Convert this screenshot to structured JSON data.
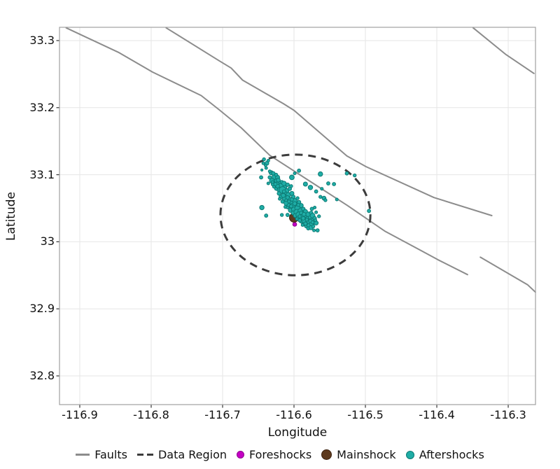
{
  "chart_data": {
    "type": "scatter",
    "title": "",
    "xlabel": "Longitude",
    "ylabel": "Latitude",
    "xlim": [
      -116.9284,
      -116.2618
    ],
    "ylim": [
      32.7572,
      33.3198
    ],
    "grid": true,
    "legend_position": "bottom",
    "x_ticks": [
      -116.9,
      -116.8,
      -116.7,
      -116.6,
      -116.5,
      -116.4,
      -116.3
    ],
    "x_tick_labels": [
      "-116.9",
      "-116.8",
      "-116.7",
      "-116.6",
      "-116.5",
      "-116.4",
      "-116.3"
    ],
    "y_ticks": [
      33.3,
      33.2,
      33.1,
      33.0,
      32.9,
      32.8
    ],
    "y_tick_labels": [
      "33.3",
      "33.2",
      "33.1",
      "33",
      "32.9",
      "32.8"
    ],
    "colors": {
      "grid": "#e6e6e6",
      "border": "#a0a0a0",
      "tick": "#333333",
      "fault": "#8c8c8c",
      "data_region": "#3c3c3c",
      "foreshock": "#c400c4",
      "foreshock_edge": "#8f008f",
      "mainshock": "#5e3a1e",
      "mainshock_edge": "#3c2310",
      "aftershock": "#1fada6",
      "aftershock_edge": "#0c7a74"
    },
    "faults": [
      [
        [
          -116.919,
          33.319
        ],
        [
          -116.845,
          33.282
        ],
        [
          -116.798,
          33.253
        ],
        [
          -116.73,
          33.218
        ],
        [
          -116.705,
          33.197
        ],
        [
          -116.674,
          33.17
        ],
        [
          -116.634,
          33.129
        ],
        [
          -116.573,
          33.087
        ],
        [
          -116.525,
          33.054
        ],
        [
          -116.473,
          33.016
        ],
        [
          -116.424,
          32.988
        ],
        [
          -116.398,
          32.973
        ],
        [
          -116.357,
          32.951
        ]
      ],
      [
        [
          -116.779,
          33.319
        ],
        [
          -116.705,
          33.27
        ],
        [
          -116.688,
          33.259
        ],
        [
          -116.672,
          33.241
        ],
        [
          -116.615,
          33.206
        ],
        [
          -116.6,
          33.196
        ],
        [
          -116.526,
          33.128
        ],
        [
          -116.499,
          33.112
        ],
        [
          -116.404,
          33.066
        ],
        [
          -116.323,
          33.039
        ]
      ],
      [
        [
          -116.349,
          33.319
        ],
        [
          -116.303,
          33.279
        ],
        [
          -116.264,
          33.251
        ]
      ],
      [
        [
          -116.339,
          32.977
        ],
        [
          -116.273,
          32.936
        ],
        [
          -116.262,
          32.925
        ]
      ]
    ],
    "data_region": {
      "center": [
        -116.598,
        33.04
      ],
      "rx": 0.105,
      "ry": 0.09
    },
    "foreshocks": [
      [
        -116.599,
        33.026,
        2.8
      ]
    ],
    "mainshock": [
      [
        -116.6,
        33.036,
        6.5
      ]
    ],
    "aftershocks": [
      [
        -116.642,
        33.123,
        2.2
      ],
      [
        -116.638,
        33.117,
        2.8
      ],
      [
        -116.643,
        33.117,
        2.0
      ],
      [
        -116.645,
        33.107,
        1.6
      ],
      [
        -116.639,
        33.11,
        2.0
      ],
      [
        -116.632,
        33.103,
        3.0
      ],
      [
        -116.627,
        33.097,
        3.8
      ],
      [
        -116.623,
        33.096,
        3.0
      ],
      [
        -116.634,
        33.096,
        2.4
      ],
      [
        -116.631,
        33.091,
        3.4
      ],
      [
        -116.625,
        33.091,
        2.6
      ],
      [
        -116.629,
        33.086,
        3.0
      ],
      [
        -116.624,
        33.085,
        4.0
      ],
      [
        -116.62,
        33.089,
        2.2
      ],
      [
        -116.636,
        33.087,
        2.0
      ],
      [
        -116.646,
        33.096,
        2.4
      ],
      [
        -116.618,
        33.083,
        4.0
      ],
      [
        -116.613,
        33.081,
        3.0
      ],
      [
        -116.621,
        33.078,
        3.4
      ],
      [
        -116.616,
        33.077,
        5.0
      ],
      [
        -116.61,
        33.076,
        3.0
      ],
      [
        -116.606,
        33.079,
        2.6
      ],
      [
        -116.613,
        33.071,
        4.0
      ],
      [
        -116.608,
        33.07,
        3.4
      ],
      [
        -116.603,
        33.072,
        3.0
      ],
      [
        -116.618,
        33.067,
        3.0
      ],
      [
        -116.612,
        33.065,
        4.4
      ],
      [
        -116.606,
        33.063,
        3.4
      ],
      [
        -116.601,
        33.067,
        2.6
      ],
      [
        -116.616,
        33.06,
        2.4
      ],
      [
        -116.61,
        33.058,
        4.2
      ],
      [
        -116.604,
        33.058,
        3.0
      ],
      [
        -116.599,
        33.061,
        3.4
      ],
      [
        -116.595,
        33.065,
        2.2
      ],
      [
        -116.607,
        33.054,
        3.0
      ],
      [
        -116.602,
        33.053,
        4.4
      ],
      [
        -116.597,
        33.056,
        3.0
      ],
      [
        -116.593,
        33.059,
        2.6
      ],
      [
        -116.612,
        33.052,
        2.2
      ],
      [
        -116.605,
        33.047,
        3.0
      ],
      [
        -116.6,
        33.048,
        3.6
      ],
      [
        -116.595,
        33.05,
        4.0
      ],
      [
        -116.59,
        33.054,
        3.0
      ],
      [
        -116.601,
        33.043,
        3.0
      ],
      [
        -116.596,
        33.044,
        4.2
      ],
      [
        -116.591,
        33.046,
        3.6
      ],
      [
        -116.587,
        33.049,
        2.6
      ],
      [
        -116.598,
        33.039,
        3.0
      ],
      [
        -116.593,
        33.04,
        4.4
      ],
      [
        -116.588,
        33.042,
        3.0
      ],
      [
        -116.584,
        33.045,
        3.0
      ],
      [
        -116.594,
        33.035,
        3.4
      ],
      [
        -116.589,
        33.036,
        4.2
      ],
      [
        -116.584,
        33.038,
        3.0
      ],
      [
        -116.58,
        33.041,
        3.4
      ],
      [
        -116.576,
        33.043,
        2.6
      ],
      [
        -116.59,
        33.031,
        3.0
      ],
      [
        -116.585,
        33.032,
        4.2
      ],
      [
        -116.581,
        33.034,
        3.4
      ],
      [
        -116.577,
        33.036,
        3.0
      ],
      [
        -116.574,
        33.039,
        3.4
      ],
      [
        -116.587,
        33.026,
        2.6
      ],
      [
        -116.582,
        33.028,
        3.0
      ],
      [
        -116.578,
        33.03,
        4.0
      ],
      [
        -116.575,
        33.032,
        3.0
      ],
      [
        -116.571,
        33.035,
        2.6
      ],
      [
        -116.583,
        33.023,
        2.2
      ],
      [
        -116.579,
        33.024,
        3.0
      ],
      [
        -116.575,
        33.027,
        3.4
      ],
      [
        -116.572,
        33.029,
        2.6
      ],
      [
        -116.58,
        33.02,
        2.4
      ],
      [
        -116.576,
        33.021,
        3.0
      ],
      [
        -116.573,
        33.023,
        2.2
      ],
      [
        -116.569,
        33.028,
        3.0
      ],
      [
        -116.567,
        33.017,
        2.4
      ],
      [
        -116.572,
        33.017,
        2.0
      ],
      [
        -116.639,
        33.039,
        2.4
      ],
      [
        -116.645,
        33.051,
        3.2
      ],
      [
        -116.617,
        33.04,
        2.2
      ],
      [
        -116.609,
        33.04,
        2.4
      ],
      [
        -116.603,
        33.096,
        3.4
      ],
      [
        -116.593,
        33.106,
        2.4
      ],
      [
        -116.599,
        33.102,
        2.0
      ],
      [
        -116.584,
        33.086,
        3.0
      ],
      [
        -116.577,
        33.081,
        3.2
      ],
      [
        -116.569,
        33.075,
        2.4
      ],
      [
        -116.563,
        33.101,
        3.2
      ],
      [
        -116.552,
        33.087,
        2.4
      ],
      [
        -116.544,
        33.086,
        2.4
      ],
      [
        -116.526,
        33.102,
        2.4
      ],
      [
        -116.515,
        33.099,
        2.2
      ],
      [
        -116.495,
        33.046,
        2.4
      ],
      [
        -116.563,
        33.067,
        2.2
      ],
      [
        -116.558,
        33.065,
        2.8
      ],
      [
        -116.634,
        33.105,
        2.0
      ],
      [
        -116.629,
        33.102,
        2.6
      ],
      [
        -116.625,
        33.1,
        2.2
      ],
      [
        -116.622,
        33.092,
        2.8
      ],
      [
        -116.617,
        33.089,
        2.4
      ],
      [
        -116.614,
        33.087,
        3.2
      ],
      [
        -116.609,
        33.085,
        2.6
      ],
      [
        -116.604,
        33.083,
        2.2
      ],
      [
        -116.621,
        33.072,
        2.6
      ],
      [
        -116.625,
        33.079,
        2.2
      ],
      [
        -116.628,
        33.082,
        2.0
      ],
      [
        -116.615,
        33.069,
        3.0
      ],
      [
        -116.609,
        33.066,
        2.6
      ],
      [
        -116.603,
        33.063,
        2.4
      ],
      [
        -116.599,
        33.057,
        2.8
      ],
      [
        -116.604,
        33.053,
        2.4
      ],
      [
        -116.609,
        33.051,
        2.0
      ],
      [
        -116.594,
        33.055,
        2.2
      ],
      [
        -116.59,
        33.043,
        2.4
      ],
      [
        -116.586,
        33.041,
        2.8
      ],
      [
        -116.592,
        33.032,
        2.4
      ],
      [
        -116.596,
        33.034,
        2.0
      ],
      [
        -116.587,
        33.035,
        2.6
      ],
      [
        -116.582,
        33.033,
        2.2
      ],
      [
        -116.577,
        33.031,
        2.6
      ],
      [
        -116.574,
        33.029,
        2.2
      ],
      [
        -116.57,
        33.032,
        2.0
      ],
      [
        -116.584,
        33.027,
        2.4
      ],
      [
        -116.588,
        33.025,
        2.0
      ],
      [
        -116.592,
        33.038,
        2.2
      ],
      [
        -116.607,
        33.06,
        2.2
      ],
      [
        -116.611,
        33.062,
        2.0
      ],
      [
        -116.623,
        33.083,
        2.8
      ],
      [
        -116.626,
        33.086,
        2.4
      ],
      [
        -116.63,
        33.089,
        2.0
      ],
      [
        -116.614,
        33.075,
        2.4
      ],
      [
        -116.62,
        33.064,
        2.0
      ],
      [
        -116.64,
        33.114,
        1.8
      ],
      [
        -116.636,
        33.121,
        2.0
      ],
      [
        -116.561,
        33.079,
        2.0
      ],
      [
        -116.556,
        33.062,
        2.2
      ],
      [
        -116.54,
        33.063,
        2.0
      ],
      [
        -116.565,
        33.038,
        2.2
      ],
      [
        -116.569,
        33.044,
        2.0
      ],
      [
        -116.575,
        33.049,
        2.4
      ],
      [
        -116.571,
        33.051,
        2.0
      ]
    ],
    "legend": [
      {
        "label": "Faults",
        "type": "line",
        "color": "#8c8c8c"
      },
      {
        "label": "Data Region",
        "type": "dash",
        "color": "#3c3c3c"
      },
      {
        "label": "Foreshocks",
        "type": "dot",
        "color": "#c400c4",
        "edge": "#8f008f",
        "size": 5.5
      },
      {
        "label": "Mainshock",
        "type": "dot",
        "color": "#5e3a1e",
        "edge": "#3c2310",
        "size": 7.5
      },
      {
        "label": "Aftershocks",
        "type": "dot",
        "color": "#1fada6",
        "edge": "#0c7a74",
        "size": 6
      }
    ]
  }
}
